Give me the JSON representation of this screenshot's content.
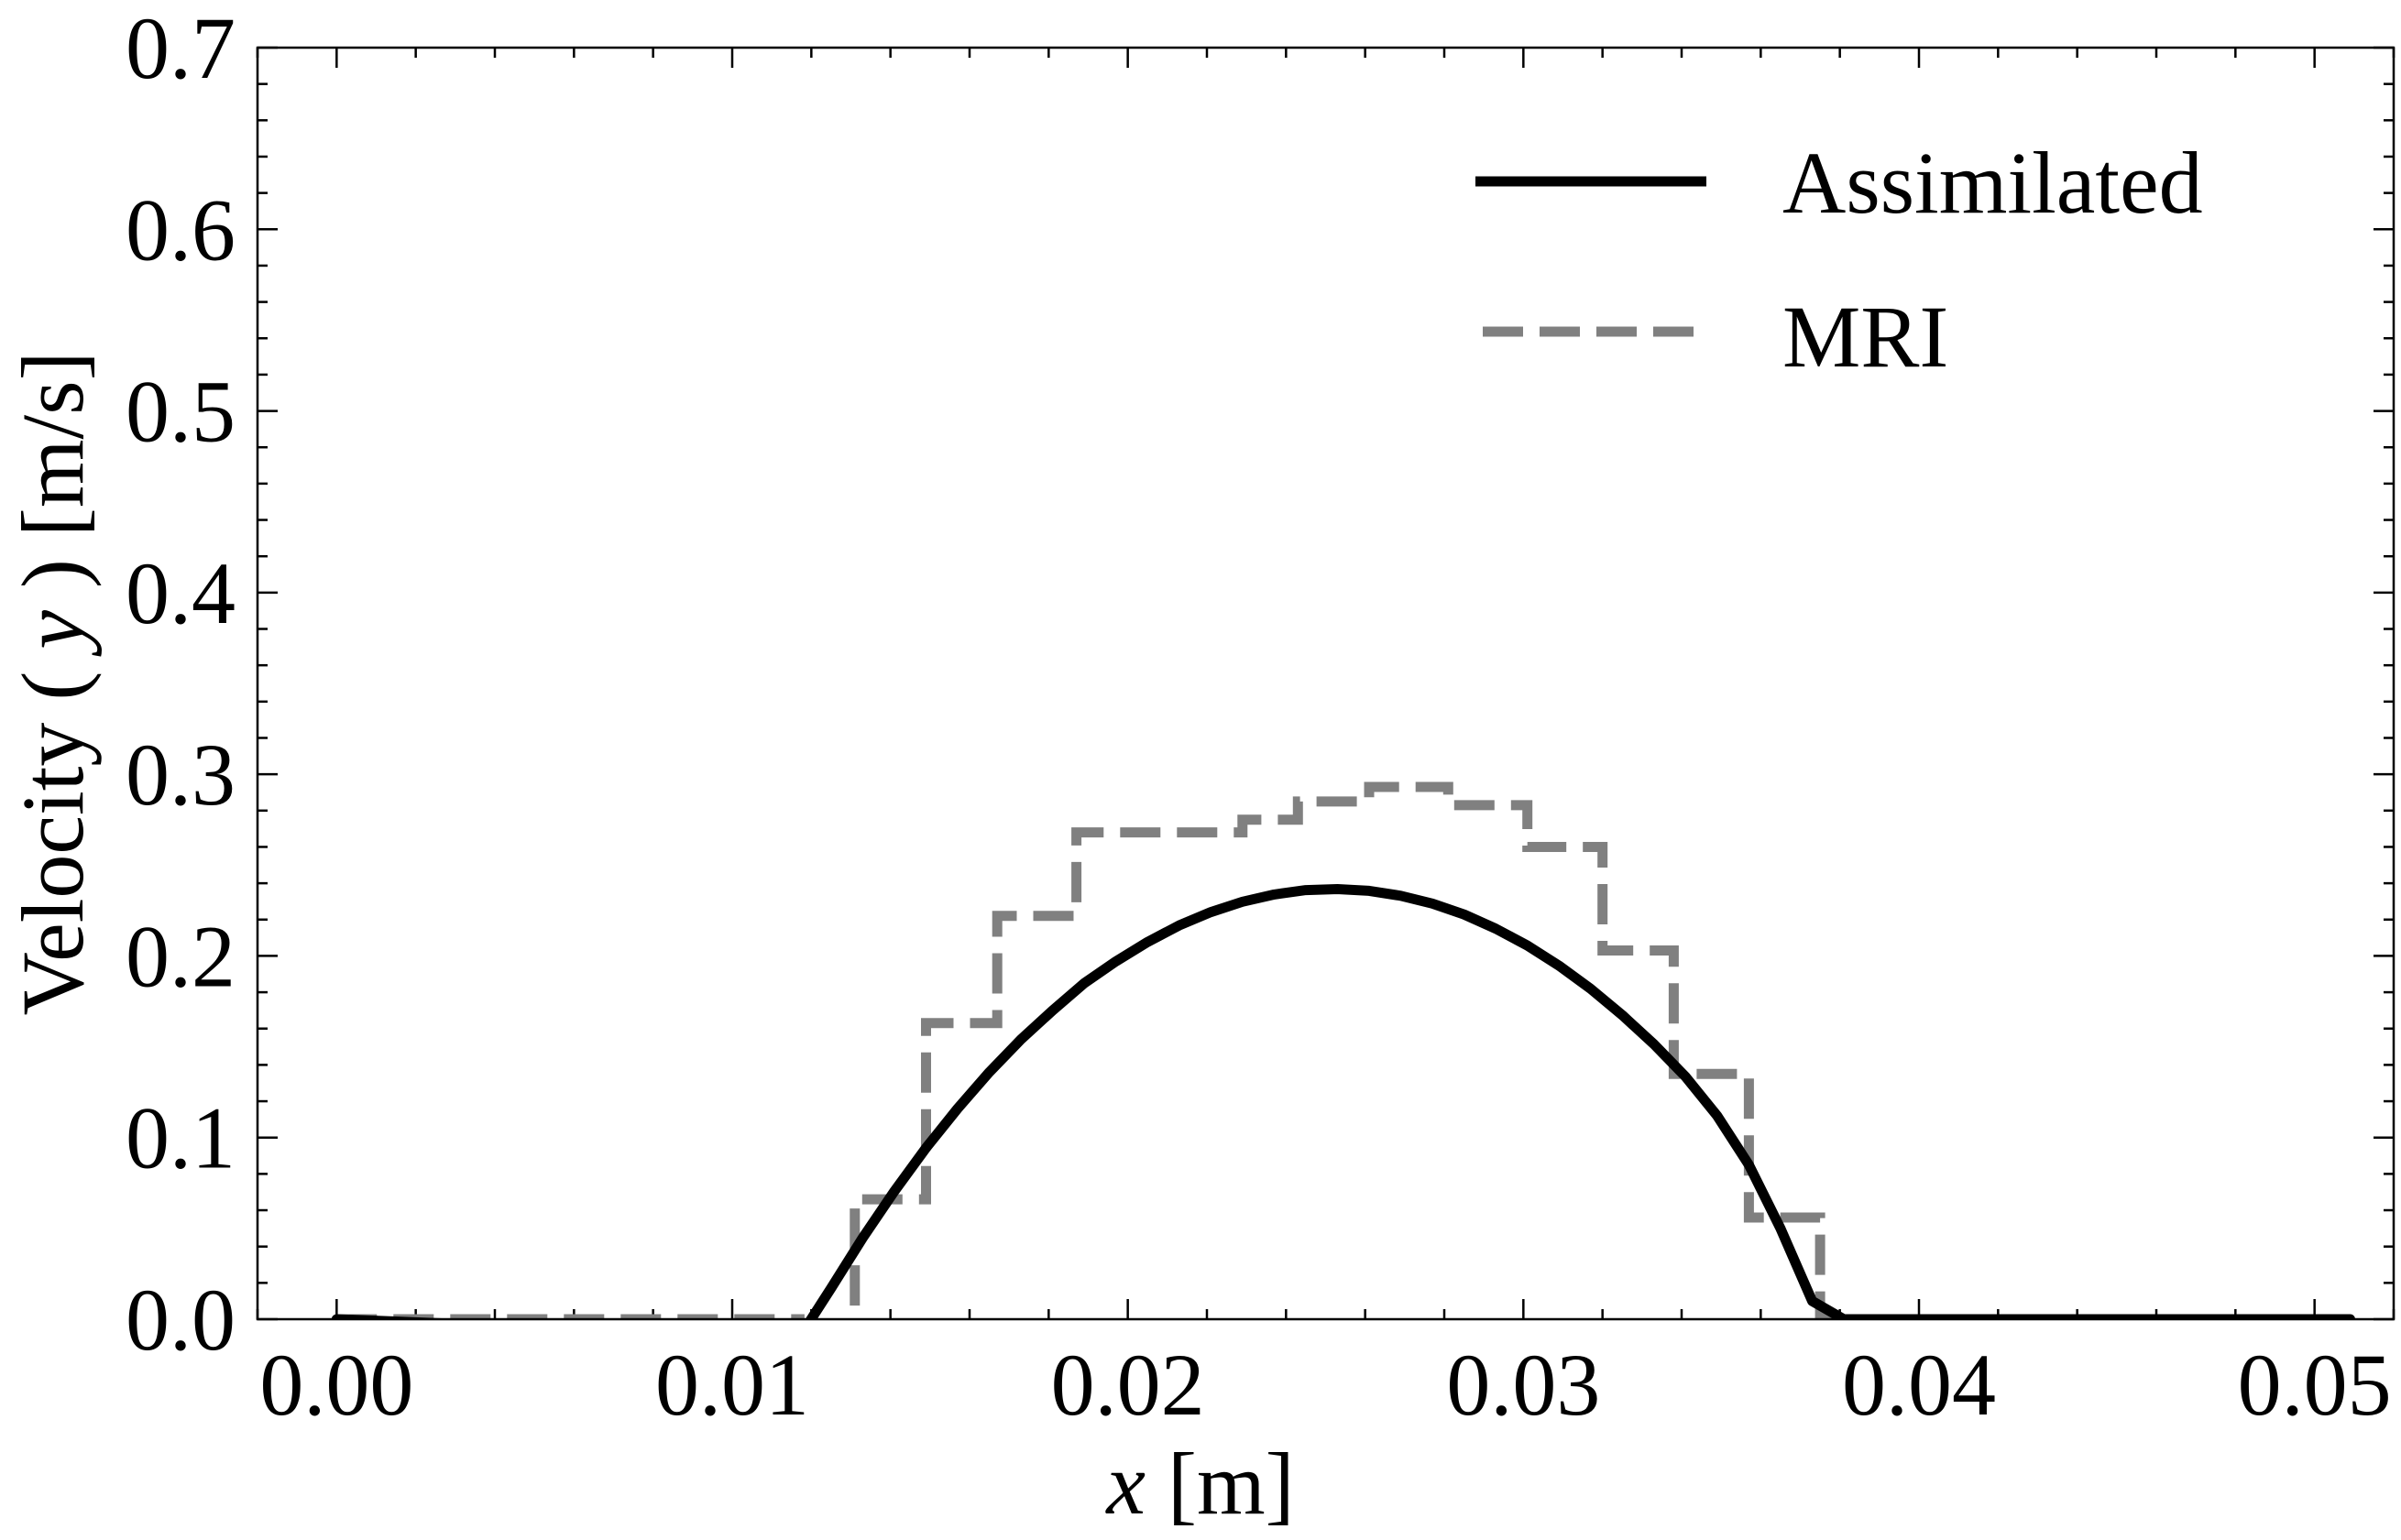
{
  "chart_data": {
    "type": "line",
    "xlabel_var": "x",
    "xlabel_unit": "[m]",
    "ylabel_pre": "Velocity (",
    "ylabel_var": "y",
    "ylabel_post": ") [m/s]",
    "xlim": [
      -0.002,
      0.052
    ],
    "ylim": [
      0.0,
      0.7
    ],
    "x_ticks": [
      0.0,
      0.01,
      0.02,
      0.03,
      0.04,
      0.05
    ],
    "x_tick_labels": [
      "0.00",
      "0.01",
      "0.02",
      "0.03",
      "0.04",
      "0.05"
    ],
    "y_ticks": [
      0.0,
      0.1,
      0.2,
      0.3,
      0.4,
      0.5,
      0.6,
      0.7
    ],
    "y_tick_labels": [
      "0.0",
      "0.1",
      "0.2",
      "0.3",
      "0.4",
      "0.5",
      "0.6",
      "0.7"
    ],
    "grid": false,
    "legend_position": "top-right",
    "series": [
      {
        "name": "Assimilated",
        "color": "#000000",
        "style": "solid",
        "x": [
          0.0,
          0.0117,
          0.0125,
          0.0133,
          0.0141,
          0.0149,
          0.0157,
          0.0165,
          0.0173,
          0.0181,
          0.0189,
          0.0197,
          0.0205,
          0.0213,
          0.0221,
          0.0229,
          0.0237,
          0.0245,
          0.0253,
          0.0261,
          0.0269,
          0.0277,
          0.0285,
          0.0293,
          0.0301,
          0.0309,
          0.0317,
          0.0325,
          0.0333,
          0.0341,
          0.0349,
          0.0357,
          0.0365,
          0.0373,
          0.0381,
          0.0509
        ],
        "y": [
          0.0,
          -0.01,
          0.0171,
          0.0448,
          0.0705,
          0.0943,
          0.116,
          0.136,
          0.154,
          0.17,
          0.185,
          0.197,
          0.2077,
          0.2168,
          0.2241,
          0.2298,
          0.2338,
          0.2362,
          0.2368,
          0.2358,
          0.2331,
          0.2288,
          0.2228,
          0.215,
          0.2057,
          0.1946,
          0.1819,
          0.1674,
          0.1514,
          0.1335,
          0.1119,
          0.085,
          0.05,
          0.01,
          0.0,
          0.0
        ]
      },
      {
        "name": "MRI",
        "color": "#808080",
        "style": "dashed",
        "x": [
          0.0,
          0.0117,
          0.0117,
          0.0131,
          0.0131,
          0.0149,
          0.0149,
          0.0167,
          0.0167,
          0.0187,
          0.0187,
          0.0229,
          0.0229,
          0.0243,
          0.0243,
          0.0261,
          0.0261,
          0.0281,
          0.0281,
          0.0301,
          0.0301,
          0.032,
          0.032,
          0.0338,
          0.0338,
          0.0357,
          0.0357,
          0.0375,
          0.0375,
          0.0509
        ],
        "y": [
          0.0,
          0.0,
          -0.01,
          -0.01,
          0.066,
          0.066,
          0.163,
          0.163,
          0.222,
          0.222,
          0.268,
          0.268,
          0.275,
          0.275,
          0.285,
          0.285,
          0.293,
          0.293,
          0.283,
          0.283,
          0.26,
          0.26,
          0.203,
          0.203,
          0.135,
          0.135,
          0.056,
          0.056,
          0.0,
          0.0
        ]
      }
    ]
  }
}
